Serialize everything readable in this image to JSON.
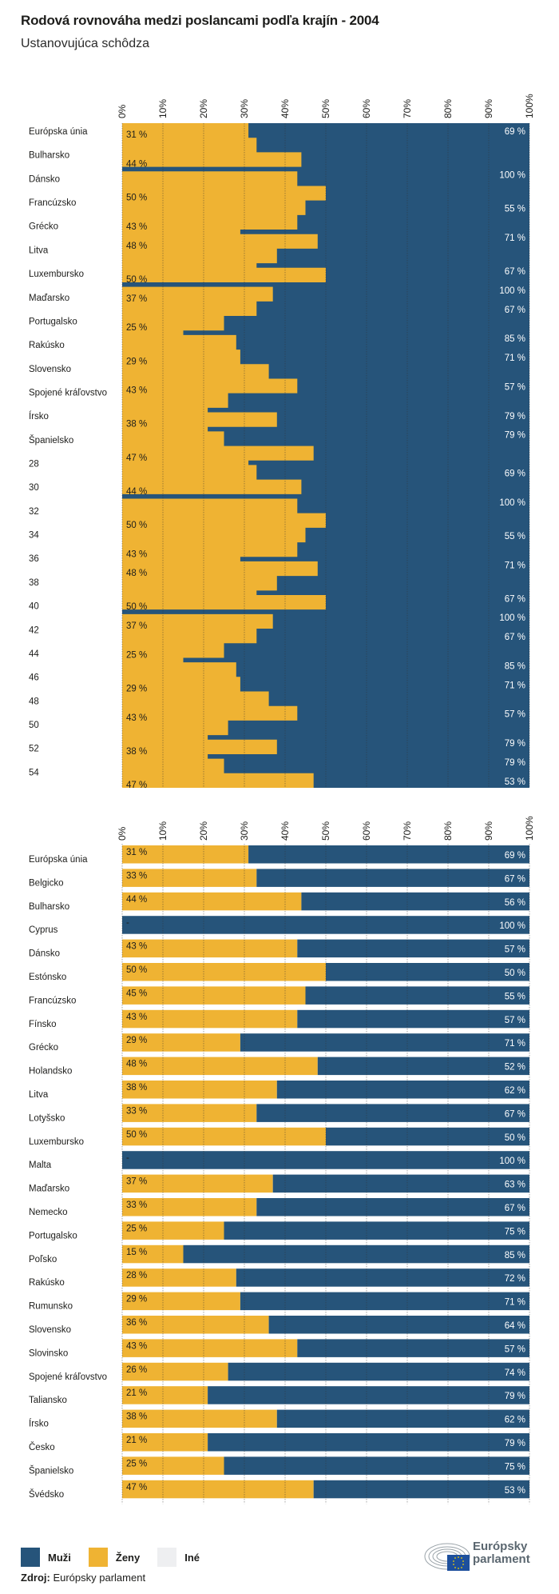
{
  "header": {
    "title": "Rodová rovnováha medzi poslancami podľa krajín - 2004",
    "subtitle": "Ustanovujúca schôdza"
  },
  "colors": {
    "men": "#26547a",
    "women": "#efb333",
    "other": "#eeeff1"
  },
  "chart_data": [
    {
      "type": "area",
      "title": "Rodová rovnováha medzi poslancami podľa krajín - 2004 (ustanovujúca schôdza, vrchný panel)",
      "xlabel": "",
      "ylabel": "",
      "xlim": [
        0,
        100
      ],
      "x_ticks": [
        "0%",
        "10%",
        "20%",
        "30%",
        "40%",
        "50%",
        "60%",
        "70%",
        "80%",
        "90%",
        "100%"
      ],
      "grid": true,
      "categories": [
        "Európska únia",
        "Bulharsko",
        "Dánsko",
        "Francúzsko",
        "Grécko",
        "Litva",
        "Luxembursko",
        "Maďarsko",
        "Portugalsko",
        "Rakúsko",
        "Slovensko",
        "Spojené kráľovstvo",
        "Írsko",
        "Španielsko",
        "28",
        "30",
        "32",
        "34",
        "36",
        "38",
        "40",
        "42",
        "44",
        "46",
        "48",
        "50",
        "52",
        "54"
      ],
      "women_steps": [
        {
          "v": 31,
          "thin": false
        },
        {
          "v": 33,
          "thin": false
        },
        {
          "v": 44,
          "thin": false
        },
        {
          "v": 0,
          "thin": true
        },
        {
          "v": 43,
          "thin": false
        },
        {
          "v": 50,
          "thin": false
        },
        {
          "v": 45,
          "thin": false
        },
        {
          "v": 43,
          "thin": false
        },
        {
          "v": 29,
          "thin": true
        },
        {
          "v": 48,
          "thin": false
        },
        {
          "v": 38,
          "thin": false
        },
        {
          "v": 33,
          "thin": true
        },
        {
          "v": 50,
          "thin": false
        },
        {
          "v": 0,
          "thin": true
        },
        {
          "v": 37,
          "thin": false
        },
        {
          "v": 33,
          "thin": false
        },
        {
          "v": 25,
          "thin": false
        },
        {
          "v": 15,
          "thin": true
        },
        {
          "v": 28,
          "thin": false
        },
        {
          "v": 29,
          "thin": false
        },
        {
          "v": 36,
          "thin": false
        },
        {
          "v": 43,
          "thin": false
        },
        {
          "v": 26,
          "thin": false
        },
        {
          "v": 21,
          "thin": true
        },
        {
          "v": 38,
          "thin": false
        },
        {
          "v": 21,
          "thin": true
        },
        {
          "v": 25,
          "thin": false
        },
        {
          "v": 47,
          "thin": false
        },
        {
          "v": 31,
          "thin": true
        },
        {
          "v": 33,
          "thin": false
        },
        {
          "v": 44,
          "thin": false
        },
        {
          "v": 0,
          "thin": true
        },
        {
          "v": 43,
          "thin": false
        },
        {
          "v": 50,
          "thin": false
        },
        {
          "v": 45,
          "thin": false
        },
        {
          "v": 43,
          "thin": false
        },
        {
          "v": 29,
          "thin": true
        },
        {
          "v": 48,
          "thin": false
        },
        {
          "v": 38,
          "thin": false
        },
        {
          "v": 33,
          "thin": true
        },
        {
          "v": 50,
          "thin": false
        },
        {
          "v": 0,
          "thin": true
        },
        {
          "v": 37,
          "thin": false
        },
        {
          "v": 33,
          "thin": false
        },
        {
          "v": 25,
          "thin": false
        },
        {
          "v": 15,
          "thin": true
        },
        {
          "v": 28,
          "thin": false
        },
        {
          "v": 29,
          "thin": false
        },
        {
          "v": 36,
          "thin": false
        },
        {
          "v": 43,
          "thin": false
        },
        {
          "v": 26,
          "thin": false
        },
        {
          "v": 21,
          "thin": true
        },
        {
          "v": 38,
          "thin": false
        },
        {
          "v": 21,
          "thin": true
        },
        {
          "v": 25,
          "thin": false
        },
        {
          "v": 47,
          "thin": false
        }
      ],
      "women_labels": [
        "31 %",
        "44 %",
        "50 %",
        "43 %",
        "48 %",
        "50 %",
        "37 %",
        "25 %",
        "29 %",
        "43 %",
        "38 %",
        "47 %",
        "44 %",
        "50 %",
        "43 %",
        "48 %",
        "50 %",
        "37 %",
        "25 %",
        "29 %",
        "43 %",
        "38 %",
        "47 %"
      ],
      "women_label_step": [
        0,
        2,
        5,
        7,
        9,
        12,
        14,
        16,
        19,
        21,
        24,
        27,
        30,
        33,
        35,
        37,
        40,
        42,
        44,
        47,
        49,
        52,
        55
      ],
      "men_labels": [
        "69 %",
        "100 %",
        "55 %",
        "71 %",
        "67 %",
        "100 %",
        "67 %",
        "85 %",
        "71 %",
        "57 %",
        "79 %",
        "79 %",
        "69 %",
        "100 %",
        "55 %",
        "71 %",
        "67 %",
        "100 %",
        "67 %",
        "85 %",
        "71 %",
        "57 %",
        "79 %",
        "79 %",
        "53 %"
      ],
      "men_label_step": [
        0,
        3,
        6,
        8,
        11,
        13,
        15,
        17,
        19,
        21,
        23,
        25,
        29,
        31,
        34,
        36,
        39,
        41,
        43,
        45,
        47,
        49,
        51,
        53,
        55
      ]
    },
    {
      "type": "bar",
      "stacked": true,
      "orientation": "horizontal",
      "title": "Rodová rovnováha medzi poslancami podľa krajín - 2004",
      "subtitle": "Ustanovujúca schôdza",
      "xlabel": "",
      "ylabel": "",
      "xlim": [
        0,
        100
      ],
      "x_ticks": [
        "0%",
        "10%",
        "20%",
        "30%",
        "40%",
        "50%",
        "60%",
        "70%",
        "80%",
        "90%",
        "100%"
      ],
      "grid": true,
      "legend": [
        "Muži",
        "Ženy",
        "Iné"
      ],
      "legend_position": "bottom-left",
      "categories": [
        "Európska únia",
        "Belgicko",
        "Bulharsko",
        "Cyprus",
        "Dánsko",
        "Estónsko",
        "Francúzsko",
        "Fínsko",
        "Grécko",
        "Holandsko",
        "Litva",
        "Lotyšsko",
        "Luxembursko",
        "Malta",
        "Maďarsko",
        "Nemecko",
        "Portugalsko",
        "Poľsko",
        "Rakúsko",
        "Rumunsko",
        "Slovensko",
        "Slovinsko",
        "Spojené kráľovstvo",
        "Taliansko",
        "Írsko",
        "Česko",
        "Španielsko",
        "Švédsko"
      ],
      "series": [
        {
          "name": "Ženy",
          "values": [
            31,
            33,
            44,
            0,
            43,
            50,
            45,
            43,
            29,
            48,
            38,
            33,
            50,
            0,
            37,
            33,
            25,
            15,
            28,
            29,
            36,
            43,
            26,
            21,
            38,
            21,
            25,
            47
          ],
          "labels": [
            "31 %",
            "33 %",
            "44 %",
            "-",
            "43 %",
            "50 %",
            "45 %",
            "43 %",
            "29 %",
            "48 %",
            "38 %",
            "33 %",
            "50 %",
            "-",
            "37 %",
            "33 %",
            "25 %",
            "15 %",
            "28 %",
            "29 %",
            "36 %",
            "43 %",
            "26 %",
            "21 %",
            "38 %",
            "21 %",
            "25 %",
            "47 %"
          ]
        },
        {
          "name": "Muži",
          "values": [
            69,
            67,
            56,
            100,
            57,
            50,
            55,
            57,
            71,
            52,
            62,
            67,
            50,
            100,
            63,
            67,
            75,
            85,
            72,
            71,
            64,
            57,
            74,
            79,
            62,
            79,
            75,
            53
          ],
          "labels": [
            "69 %",
            "67 %",
            "56 %",
            "100 %",
            "57 %",
            "50 %",
            "55 %",
            "57 %",
            "71 %",
            "52 %",
            "62 %",
            "67 %",
            "50 %",
            "100 %",
            "63 %",
            "67 %",
            "75 %",
            "85 %",
            "72 %",
            "71 %",
            "64 %",
            "57 %",
            "74 %",
            "79 %",
            "62 %",
            "79 %",
            "75 %",
            "53 %"
          ]
        }
      ]
    }
  ],
  "legend": {
    "items": [
      {
        "label": "Muži",
        "color": "#26547a"
      },
      {
        "label": "Ženy",
        "color": "#efb333"
      },
      {
        "label": "Iné",
        "color": "#eeeff1"
      }
    ]
  },
  "source": {
    "label": "Zdroj:",
    "value": "Európsky parlament"
  },
  "logo": {
    "line1": "Európsky",
    "line2": "parlament"
  }
}
